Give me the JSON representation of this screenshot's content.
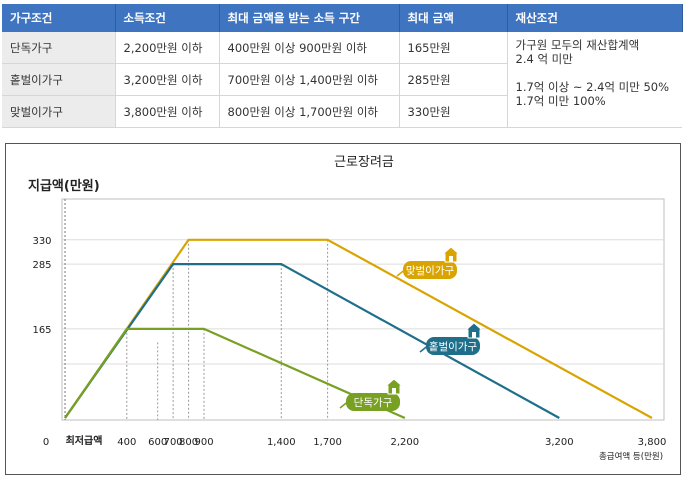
{
  "table": {
    "headers": [
      "가구조건",
      "소득조건",
      "최대 금액을 받는 소득 구간",
      "최대 금액",
      "재산조건"
    ],
    "rows": [
      [
        "단독가구",
        "2,200만원 이하",
        "400만원 이상 900만원 이하",
        "165만원"
      ],
      [
        "홑벌이가구",
        "3,200만원 이하",
        "700만원 이상 1,400만원 이하",
        "285만원"
      ],
      [
        "맞벌이가구",
        "3,800만원 이하",
        "800만원 이상 1,700만원 이하",
        "330만원"
      ]
    ],
    "asset_condition": [
      "가구원 모두의 재산합계액",
      "2.4 억 미만",
      "",
      "1.7억 이상 ~ 2.4억 미만 50%",
      "1.7억 미만 100%"
    ]
  },
  "chart_data": {
    "type": "line",
    "title": "근로장려금",
    "ylabel": "지급액(만원)",
    "xlabel": "총급여액 등(만원)",
    "x_origin_label": "0",
    "x_min_label": "최저급액",
    "y_ticks": [
      165,
      285,
      330
    ],
    "x_ticks": [
      400,
      600,
      700,
      800,
      900,
      1400,
      1700,
      2200,
      3200,
      3800
    ],
    "x_tick_labels": [
      "400",
      "600",
      "700",
      "800",
      "900",
      "1,400",
      "1,700",
      "2,200",
      "3,200",
      "3,800"
    ],
    "grid": true,
    "colors": {
      "single": "#78a022",
      "one_earner": "#1f6f8b",
      "dual": "#d9a400"
    },
    "series": [
      {
        "name": "단독가구",
        "color": "#78a022",
        "points": [
          [
            0,
            0
          ],
          [
            400,
            165
          ],
          [
            900,
            165
          ],
          [
            2200,
            0
          ]
        ]
      },
      {
        "name": "홑벌이가구",
        "color": "#1f6f8b",
        "points": [
          [
            0,
            0
          ],
          [
            700,
            285
          ],
          [
            1400,
            285
          ],
          [
            3200,
            0
          ]
        ]
      },
      {
        "name": "맞벌이가구",
        "color": "#d9a400",
        "points": [
          [
            0,
            0
          ],
          [
            800,
            330
          ],
          [
            1700,
            330
          ],
          [
            3800,
            0
          ]
        ]
      }
    ]
  }
}
